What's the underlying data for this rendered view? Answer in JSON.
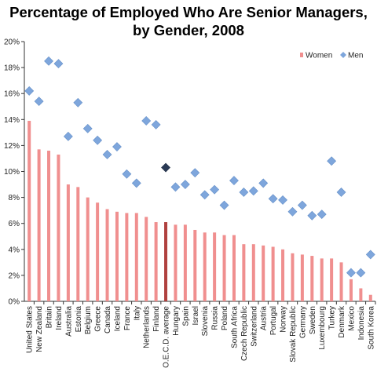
{
  "chart_data": {
    "type": "bar",
    "title_line1": "Percentage of Employed Who Are Senior Managers,",
    "title_line2": "by Gender, 2008",
    "xlabel": "",
    "ylabel": "",
    "ylim": [
      0,
      20
    ],
    "yticks": [
      "0%",
      "2%",
      "4%",
      "6%",
      "8%",
      "10%",
      "12%",
      "14%",
      "16%",
      "18%",
      "20%"
    ],
    "grid": false,
    "legend_position": "top-right",
    "categories": [
      "United States",
      "New Zealand",
      "Britain",
      "Ireland",
      "Australia",
      "Estonia",
      "Belgium",
      "Greece",
      "Canada",
      "Iceland",
      "France",
      "Italy",
      "Netherlands",
      "Finland",
      "O.E.C.D. average",
      "Hungary",
      "Spain",
      "Israel",
      "Slovenia",
      "Russia",
      "Poland",
      "South Africa",
      "Czech Republic",
      "Switzerland",
      "Austria",
      "Portugal",
      "Norway",
      "Slovak Republic",
      "Germany",
      "Sweden",
      "Luxembourg",
      "Turkey",
      "Denmark",
      "Mexico",
      "Indonesia",
      "South Korea"
    ],
    "highlight_category": "O.E.C.D. average",
    "series": [
      {
        "name": "Women",
        "kind": "bar",
        "color": "#f08f8f",
        "highlight_color": "#b0413e",
        "values": [
          13.9,
          11.7,
          11.6,
          11.3,
          9.0,
          8.8,
          8.0,
          7.6,
          7.1,
          6.9,
          6.8,
          6.8,
          6.5,
          6.1,
          6.1,
          5.9,
          5.9,
          5.5,
          5.3,
          5.3,
          5.1,
          5.1,
          4.4,
          4.4,
          4.3,
          4.2,
          4.0,
          3.7,
          3.6,
          3.5,
          3.3,
          3.3,
          3.0,
          1.7,
          1.0,
          0.5
        ]
      },
      {
        "name": "Men",
        "kind": "scatter",
        "color": "#7ea6dc",
        "highlight_color": "#2a3a55",
        "values": [
          16.2,
          15.4,
          18.5,
          18.3,
          12.7,
          15.3,
          13.3,
          12.4,
          11.3,
          11.9,
          9.8,
          9.1,
          13.9,
          13.6,
          10.3,
          8.8,
          9.0,
          9.9,
          8.2,
          8.6,
          7.4,
          9.3,
          8.4,
          8.5,
          9.1,
          7.9,
          7.8,
          6.9,
          7.4,
          6.6,
          6.7,
          10.8,
          8.4,
          2.2,
          2.2,
          3.6
        ]
      }
    ]
  }
}
